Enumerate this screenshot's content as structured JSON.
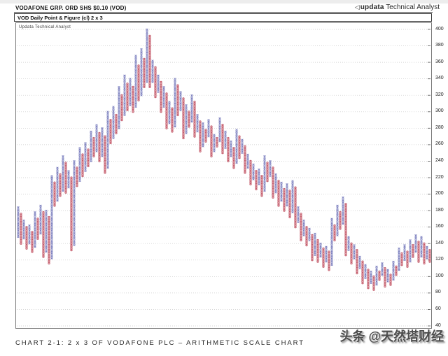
{
  "header": {
    "title": "VODAFONE GRP. ORD SHS $0.10 (VOD)",
    "logo_arrow": "◁",
    "logo_brand": "updata",
    "logo_suffix": " Technical Analyst"
  },
  "chart_header": {
    "label": "VOD Daily Point & Figure (cl) 2 x 3"
  },
  "inner_watermark": "Updata Technical Analyst",
  "caption": "CHART 2-1: 2 x 3 OF VODAFONE PLC – ARITHMETIC SCALE CHART",
  "social_watermark": "头条 @天然塔财经",
  "chart_data": {
    "type": "point-and-figure",
    "title": "VOD Daily Point & Figure (cl) 2 x 3",
    "instrument": "VODAFONE GRP. ORD SHS $0.10 (VOD)",
    "box_size": 2,
    "reversal": 3,
    "scale": "arithmetic",
    "ylim": [
      40,
      400
    ],
    "y_ticks": [
      400,
      380,
      360,
      340,
      320,
      300,
      280,
      260,
      240,
      220,
      200,
      180,
      160,
      140,
      120,
      100,
      80,
      60,
      40
    ],
    "grid": "dotted-horizontal",
    "x_color": "#7276ba",
    "o_color": "#c25565",
    "o_fill": "#f2d3d8",
    "columns": [
      [
        "X",
        148,
        184
      ],
      [
        "O",
        140,
        176
      ],
      [
        "X",
        146,
        168
      ],
      [
        "O",
        134,
        160
      ],
      [
        "X",
        140,
        162
      ],
      [
        "O",
        130,
        154
      ],
      [
        "X",
        136,
        178
      ],
      [
        "O",
        146,
        170
      ],
      [
        "X",
        152,
        186
      ],
      [
        "O",
        124,
        178
      ],
      [
        "X",
        130,
        180
      ],
      [
        "O",
        116,
        172
      ],
      [
        "X",
        122,
        222
      ],
      [
        "O",
        186,
        214
      ],
      [
        "X",
        192,
        232
      ],
      [
        "O",
        198,
        224
      ],
      [
        "X",
        204,
        246
      ],
      [
        "O",
        202,
        238
      ],
      [
        "X",
        208,
        228
      ],
      [
        "O",
        132,
        220
      ],
      [
        "X",
        138,
        240
      ],
      [
        "O",
        210,
        232
      ],
      [
        "X",
        216,
        256
      ],
      [
        "O",
        222,
        248
      ],
      [
        "X",
        228,
        262
      ],
      [
        "O",
        234,
        254
      ],
      [
        "X",
        240,
        276
      ],
      [
        "O",
        246,
        268
      ],
      [
        "X",
        252,
        284
      ],
      [
        "O",
        240,
        274
      ],
      [
        "X",
        246,
        280
      ],
      [
        "O",
        226,
        270
      ],
      [
        "X",
        232,
        300
      ],
      [
        "O",
        262,
        290
      ],
      [
        "X",
        268,
        306
      ],
      [
        "O",
        274,
        296
      ],
      [
        "X",
        280,
        330
      ],
      [
        "O",
        290,
        320
      ],
      [
        "X",
        296,
        344
      ],
      [
        "O",
        302,
        334
      ],
      [
        "X",
        308,
        340
      ],
      [
        "O",
        300,
        330
      ],
      [
        "X",
        306,
        368
      ],
      [
        "O",
        314,
        356
      ],
      [
        "X",
        320,
        376
      ],
      [
        "O",
        330,
        364
      ],
      [
        "X",
        336,
        400
      ],
      [
        "O",
        330,
        392
      ],
      [
        "X",
        336,
        362
      ],
      [
        "O",
        318,
        354
      ],
      [
        "X",
        324,
        344
      ],
      [
        "O",
        300,
        336
      ],
      [
        "X",
        306,
        330
      ],
      [
        "O",
        280,
        322
      ],
      [
        "X",
        286,
        312
      ],
      [
        "O",
        276,
        304
      ],
      [
        "X",
        282,
        340
      ],
      [
        "O",
        296,
        332
      ],
      [
        "X",
        302,
        324
      ],
      [
        "O",
        268,
        316
      ],
      [
        "X",
        274,
        308
      ],
      [
        "O",
        282,
        300
      ],
      [
        "X",
        288,
        320
      ],
      [
        "O",
        270,
        312
      ],
      [
        "X",
        276,
        296
      ],
      [
        "O",
        252,
        288
      ],
      [
        "X",
        258,
        286
      ],
      [
        "O",
        264,
        278
      ],
      [
        "X",
        270,
        290
      ],
      [
        "O",
        246,
        282
      ],
      [
        "X",
        252,
        272
      ],
      [
        "O",
        258,
        268
      ],
      [
        "X",
        264,
        292
      ],
      [
        "O",
        250,
        284
      ],
      [
        "X",
        256,
        276
      ],
      [
        "O",
        240,
        268
      ],
      [
        "X",
        246,
        264
      ],
      [
        "O",
        232,
        256
      ],
      [
        "X",
        238,
        278
      ],
      [
        "O",
        244,
        270
      ],
      [
        "X",
        250,
        266
      ],
      [
        "O",
        226,
        258
      ],
      [
        "X",
        232,
        248
      ],
      [
        "O",
        212,
        240
      ],
      [
        "X",
        218,
        236
      ],
      [
        "O",
        206,
        228
      ],
      [
        "X",
        212,
        230
      ],
      [
        "O",
        198,
        222
      ],
      [
        "X",
        204,
        246
      ],
      [
        "O",
        216,
        238
      ],
      [
        "X",
        222,
        240
      ],
      [
        "O",
        196,
        232
      ],
      [
        "X",
        202,
        224
      ],
      [
        "O",
        186,
        216
      ],
      [
        "X",
        192,
        214
      ],
      [
        "O",
        180,
        206
      ],
      [
        "X",
        186,
        212
      ],
      [
        "O",
        172,
        204
      ],
      [
        "X",
        178,
        216
      ],
      [
        "O",
        160,
        208
      ],
      [
        "X",
        166,
        184
      ],
      [
        "O",
        144,
        176
      ],
      [
        "X",
        150,
        168
      ],
      [
        "O",
        138,
        160
      ],
      [
        "X",
        144,
        158
      ],
      [
        "O",
        120,
        150
      ],
      [
        "X",
        126,
        152
      ],
      [
        "O",
        118,
        144
      ],
      [
        "X",
        124,
        140
      ],
      [
        "O",
        112,
        134
      ],
      [
        "X",
        118,
        136
      ],
      [
        "O",
        108,
        130
      ],
      [
        "X",
        114,
        170
      ],
      [
        "O",
        144,
        162
      ],
      [
        "X",
        150,
        186
      ],
      [
        "O",
        158,
        178
      ],
      [
        "X",
        164,
        196
      ],
      [
        "O",
        126,
        188
      ],
      [
        "X",
        132,
        148
      ],
      [
        "O",
        116,
        140
      ],
      [
        "X",
        122,
        138
      ],
      [
        "O",
        104,
        132
      ],
      [
        "X",
        110,
        124
      ],
      [
        "O",
        92,
        118
      ],
      [
        "X",
        98,
        114
      ],
      [
        "O",
        86,
        108
      ],
      [
        "X",
        92,
        106
      ],
      [
        "O",
        84,
        100
      ],
      [
        "X",
        90,
        112
      ],
      [
        "O",
        96,
        106
      ],
      [
        "X",
        102,
        116
      ],
      [
        "O",
        88,
        110
      ],
      [
        "X",
        94,
        108
      ],
      [
        "O",
        90,
        102
      ],
      [
        "X",
        96,
        118
      ],
      [
        "O",
        102,
        112
      ],
      [
        "X",
        108,
        134
      ],
      [
        "O",
        114,
        128
      ],
      [
        "X",
        120,
        138
      ],
      [
        "O",
        112,
        130
      ],
      [
        "X",
        118,
        144
      ],
      [
        "O",
        124,
        138
      ],
      [
        "X",
        130,
        150
      ],
      [
        "O",
        118,
        142
      ],
      [
        "X",
        124,
        148
      ],
      [
        "O",
        116,
        140
      ],
      [
        "X",
        122,
        136
      ],
      [
        "O",
        118,
        132
      ]
    ]
  }
}
